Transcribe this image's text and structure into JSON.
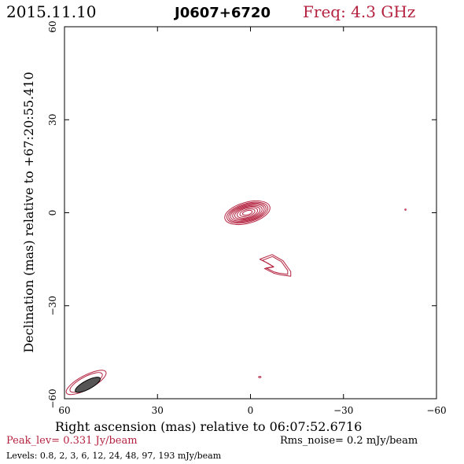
{
  "header": {
    "date": "2015.11.10",
    "source": "J0607+6720",
    "frequency": "Freq: 4.3 GHz"
  },
  "colors": {
    "contour": "#b4223f",
    "beam_fill": "#555555",
    "axis": "#000000"
  },
  "chart_data": {
    "type": "contour",
    "xlabel": "Right ascension (mas) relative to 06:07:52.6716",
    "ylabel": "Declination (mas) relative to +67:20:55.410",
    "xlim": [
      60,
      -60
    ],
    "ylim": [
      -60,
      60
    ],
    "xticks": [
      60,
      30,
      0,
      -30,
      -60
    ],
    "yticks": [
      -60,
      -30,
      0,
      30,
      60
    ],
    "xtick_labels": [
      "60",
      "30",
      "0",
      "−30",
      "−60"
    ],
    "ytick_labels": [
      "−60",
      "−30",
      "0",
      "30",
      "60"
    ],
    "peak_level": "Peak_lev=  0.331 Jy/beam",
    "rms_noise": "Rms_noise=  0.2 mJy/beam",
    "levels_text": "Levels: 0.8,   2,   3,   6,  12,  24,  48,  97, 193 mJy/beam",
    "components": [
      {
        "name": "core",
        "center": [
          1.0,
          0.0
        ],
        "rx": [
          7.5,
          6.8,
          6.2,
          5.6,
          4.9,
          4.2,
          3.4,
          2.5,
          1.6
        ],
        "ry": [
          3.4,
          3.0,
          2.7,
          2.4,
          2.1,
          1.8,
          1.5,
          1.1,
          0.7
        ],
        "angle_deg": -15
      },
      {
        "name": "jet-knot",
        "center": [
          -7.5,
          -17.0
        ],
        "outline": [
          [
            -3.0,
            -15.0
          ],
          [
            -7.0,
            -13.5
          ],
          [
            -10.5,
            -15.5
          ],
          [
            -13.0,
            -19.0
          ],
          [
            -13.0,
            -20.5
          ],
          [
            -9.5,
            -20.0
          ],
          [
            -7.5,
            -19.5
          ],
          [
            -4.5,
            -18.0
          ],
          [
            -7.5,
            -17.5
          ],
          [
            -5.0,
            -16.0
          ]
        ]
      },
      {
        "name": "noise-spot-east",
        "center": [
          -50.0,
          1.0
        ],
        "rx": [
          0.2
        ],
        "ry": [
          0.2
        ],
        "angle_deg": 0
      },
      {
        "name": "noise-spot-south",
        "center": [
          -3.0,
          -53.0
        ],
        "rx": [
          0.4
        ],
        "ry": [
          0.2
        ],
        "angle_deg": 0
      }
    ],
    "beam": {
      "center": [
        52.5,
        -55.5
      ],
      "major_mas": 9.0,
      "minor_mas": 2.8,
      "angle_deg": -28
    }
  }
}
